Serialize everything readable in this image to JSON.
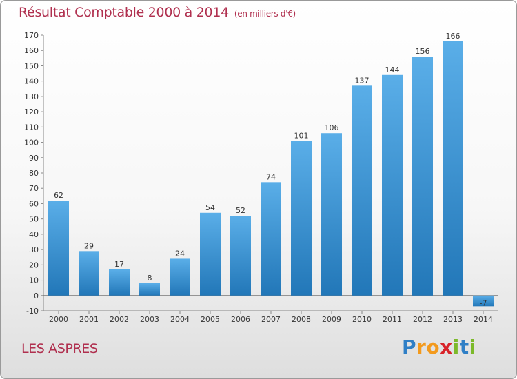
{
  "header": {
    "title": "Résultat Comptable 2000 à 2014",
    "unit": "(en milliers d'€)"
  },
  "footer": {
    "commune": "LES ASPRES",
    "logo": [
      "P",
      "r",
      "o",
      "x",
      "i",
      "t",
      "i"
    ]
  },
  "colors": {
    "title": "#b0304f",
    "bar_top": "#5aaee8",
    "bar_bottom": "#2277b8"
  },
  "chart_data": {
    "type": "bar",
    "title": "Résultat Comptable 2000 à 2014",
    "subtitle": "(en milliers d'€)",
    "xlabel": "",
    "ylabel": "",
    "categories": [
      "2000",
      "2001",
      "2002",
      "2003",
      "2004",
      "2005",
      "2006",
      "2007",
      "2008",
      "2009",
      "2010",
      "2011",
      "2012",
      "2013",
      "2014"
    ],
    "values": [
      62,
      29,
      17,
      8,
      24,
      54,
      52,
      74,
      101,
      106,
      137,
      144,
      156,
      166,
      -7
    ],
    "ylim": [
      -10,
      170
    ],
    "yticks": [
      -10,
      0,
      10,
      20,
      30,
      40,
      50,
      60,
      70,
      80,
      90,
      100,
      110,
      120,
      130,
      140,
      150,
      160,
      170
    ],
    "grid": false,
    "legend": "none"
  }
}
